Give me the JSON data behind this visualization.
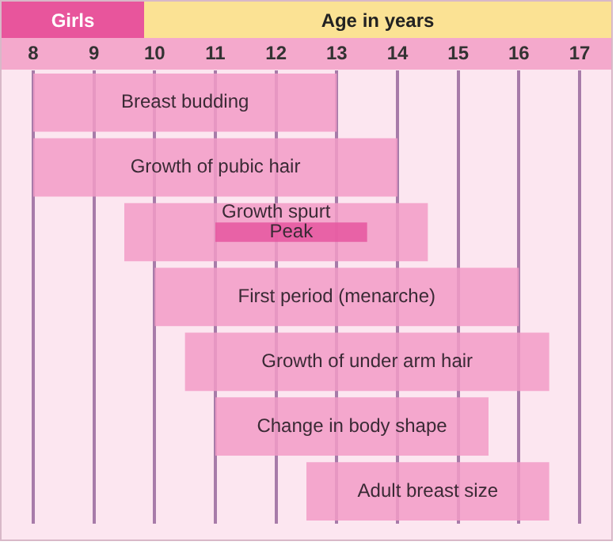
{
  "chart_data": {
    "type": "bar",
    "orientation": "horizontal",
    "title": "Girls",
    "xlabel": "Age in years",
    "categories": [
      "Breast budding",
      "Growth of pubic hair",
      "Growth spurt",
      "First period (menarche)",
      "Growth of under arm hair",
      "Change in body shape",
      "Adult breast size"
    ],
    "series": [
      {
        "color": "#f29cc6",
        "base": [
          8,
          8,
          9.5,
          10,
          10.5,
          11,
          12.5
        ],
        "values": [
          5,
          6,
          5,
          6,
          6,
          4.5,
          4
        ]
      },
      {
        "name": "Peak",
        "color": "#e5559e",
        "base": [
          null,
          null,
          11,
          null,
          null,
          null,
          null
        ],
        "values": [
          null,
          null,
          2.5,
          null,
          null,
          null,
          null
        ]
      }
    ],
    "xlim": [
      8,
      17
    ],
    "xticks": [
      8,
      9,
      10,
      11,
      12,
      13,
      14,
      15,
      16,
      17
    ],
    "grid": "x",
    "tick_labels": "x",
    "legend": false
  }
}
